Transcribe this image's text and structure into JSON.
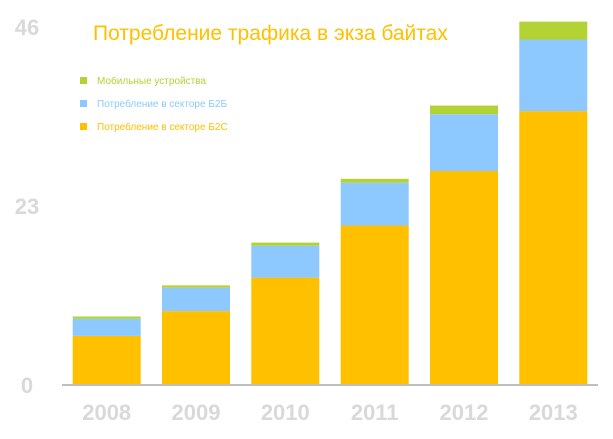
{
  "chart_data": {
    "type": "bar",
    "stacked": true,
    "title": "Потребление трафика в экза байтах",
    "xlabel": "",
    "ylabel": "",
    "categories": [
      "2008",
      "2009",
      "2010",
      "2011",
      "2012",
      "2013"
    ],
    "y_ticks": [
      "0",
      "23",
      "46"
    ],
    "ylim": [
      0,
      46
    ],
    "grid": false,
    "legend_position": "top-left",
    "series": [
      {
        "name": "Потребление в секторе Б2С",
        "color": "#FFC000",
        "values": [
          6.3,
          9.5,
          13.8,
          20.5,
          27.5,
          35.2
        ]
      },
      {
        "name": "Потребление в секторе Б2Б",
        "color": "#8DC9FF",
        "values": [
          2.2,
          3.0,
          4.1,
          5.5,
          7.3,
          9.2
        ]
      },
      {
        "name": "Мобильные устройства",
        "color": "#B3D335",
        "values": [
          0.3,
          0.3,
          0.4,
          0.5,
          1.1,
          2.3
        ]
      }
    ],
    "legend_order": [
      2,
      1,
      0
    ],
    "axis_color": "#BFBFBF",
    "tick_color": "#D9D9D9",
    "title_color": "#FFC000"
  }
}
